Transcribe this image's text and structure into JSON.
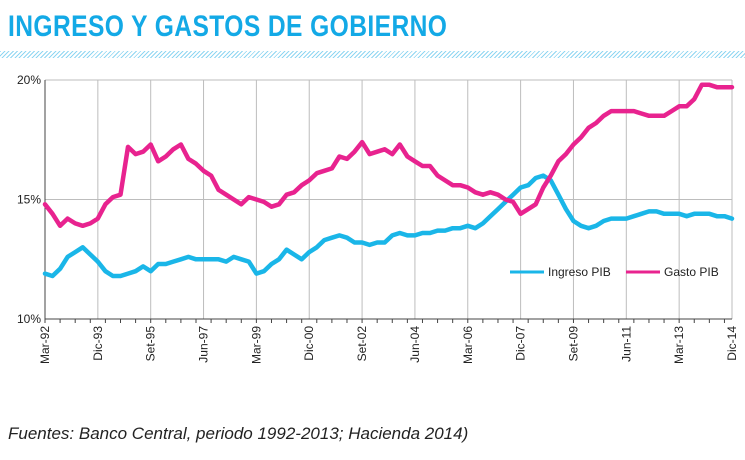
{
  "header": {
    "title": "INGRESO Y GASTOS DE GOBIERNO"
  },
  "footer": {
    "source": "Fuentes: Banco Central, periodo 1992-2013; Hacienda 2014)"
  },
  "colors": {
    "ingreso": "#1ab6e8",
    "gasto": "#e8238f",
    "title": "#13a9e6",
    "grid": "#bdbdbd"
  },
  "chart_data": {
    "type": "line",
    "title": "INGRESO Y GASTOS DE GOBIERNO",
    "xlabel": "",
    "ylabel": "",
    "ylim": [
      10,
      20
    ],
    "yticks": [
      10,
      15,
      20
    ],
    "ytick_labels": [
      "10%",
      "15%",
      "20%"
    ],
    "grid": true,
    "legend_position": "center-right",
    "x_start": "1992-03",
    "x_end": "2014-12",
    "xticks": [
      {
        "date": "1992-03",
        "label": "Mar-92"
      },
      {
        "date": "1993-12",
        "label": "Dic-93"
      },
      {
        "date": "1995-09",
        "label": "Set-95"
      },
      {
        "date": "1997-06",
        "label": "Jun-97"
      },
      {
        "date": "1999-03",
        "label": "Mar-99"
      },
      {
        "date": "2000-12",
        "label": "Dic-00"
      },
      {
        "date": "2002-09",
        "label": "Set-02"
      },
      {
        "date": "2004-06",
        "label": "Jun-04"
      },
      {
        "date": "2006-03",
        "label": "Mar-06"
      },
      {
        "date": "2007-12",
        "label": "Dic-07"
      },
      {
        "date": "2009-09",
        "label": "Set-09"
      },
      {
        "date": "2011-06",
        "label": "Jun-11"
      },
      {
        "date": "2013-03",
        "label": "Mar-13"
      },
      {
        "date": "2014-12",
        "label": "Dic-14"
      }
    ],
    "series": [
      {
        "name": "Ingreso PIB",
        "color": "#1ab6e8",
        "points": [
          [
            "1992-03",
            11.9
          ],
          [
            "1992-06",
            11.8
          ],
          [
            "1992-09",
            12.1
          ],
          [
            "1992-12",
            12.6
          ],
          [
            "1993-03",
            12.8
          ],
          [
            "1993-06",
            13.0
          ],
          [
            "1993-09",
            12.7
          ],
          [
            "1993-12",
            12.4
          ],
          [
            "1994-03",
            12.0
          ],
          [
            "1994-06",
            11.8
          ],
          [
            "1994-09",
            11.8
          ],
          [
            "1994-12",
            11.9
          ],
          [
            "1995-03",
            12.0
          ],
          [
            "1995-06",
            12.2
          ],
          [
            "1995-09",
            12.0
          ],
          [
            "1995-12",
            12.3
          ],
          [
            "1996-03",
            12.3
          ],
          [
            "1996-06",
            12.4
          ],
          [
            "1996-09",
            12.5
          ],
          [
            "1996-12",
            12.6
          ],
          [
            "1997-03",
            12.5
          ],
          [
            "1997-06",
            12.5
          ],
          [
            "1997-09",
            12.5
          ],
          [
            "1997-12",
            12.5
          ],
          [
            "1998-03",
            12.4
          ],
          [
            "1998-06",
            12.6
          ],
          [
            "1998-09",
            12.5
          ],
          [
            "1998-12",
            12.4
          ],
          [
            "1999-03",
            11.9
          ],
          [
            "1999-06",
            12.0
          ],
          [
            "1999-09",
            12.3
          ],
          [
            "1999-12",
            12.5
          ],
          [
            "2000-03",
            12.9
          ],
          [
            "2000-06",
            12.7
          ],
          [
            "2000-09",
            12.5
          ],
          [
            "2000-12",
            12.8
          ],
          [
            "2001-03",
            13.0
          ],
          [
            "2001-06",
            13.3
          ],
          [
            "2001-09",
            13.4
          ],
          [
            "2001-12",
            13.5
          ],
          [
            "2002-03",
            13.4
          ],
          [
            "2002-06",
            13.2
          ],
          [
            "2002-09",
            13.2
          ],
          [
            "2002-12",
            13.1
          ],
          [
            "2003-03",
            13.2
          ],
          [
            "2003-06",
            13.2
          ],
          [
            "2003-09",
            13.5
          ],
          [
            "2003-12",
            13.6
          ],
          [
            "2004-03",
            13.5
          ],
          [
            "2004-06",
            13.5
          ],
          [
            "2004-09",
            13.6
          ],
          [
            "2004-12",
            13.6
          ],
          [
            "2005-03",
            13.7
          ],
          [
            "2005-06",
            13.7
          ],
          [
            "2005-09",
            13.8
          ],
          [
            "2005-12",
            13.8
          ],
          [
            "2006-03",
            13.9
          ],
          [
            "2006-06",
            13.8
          ],
          [
            "2006-09",
            14.0
          ],
          [
            "2006-12",
            14.3
          ],
          [
            "2007-03",
            14.6
          ],
          [
            "2007-06",
            14.9
          ],
          [
            "2007-09",
            15.2
          ],
          [
            "2007-12",
            15.5
          ],
          [
            "2008-03",
            15.6
          ],
          [
            "2008-06",
            15.9
          ],
          [
            "2008-09",
            16.0
          ],
          [
            "2008-12",
            15.8
          ],
          [
            "2009-03",
            15.2
          ],
          [
            "2009-06",
            14.6
          ],
          [
            "2009-09",
            14.1
          ],
          [
            "2009-12",
            13.9
          ],
          [
            "2010-03",
            13.8
          ],
          [
            "2010-06",
            13.9
          ],
          [
            "2010-09",
            14.1
          ],
          [
            "2010-12",
            14.2
          ],
          [
            "2011-03",
            14.2
          ],
          [
            "2011-06",
            14.2
          ],
          [
            "2011-09",
            14.3
          ],
          [
            "2011-12",
            14.4
          ],
          [
            "2012-03",
            14.5
          ],
          [
            "2012-06",
            14.5
          ],
          [
            "2012-09",
            14.4
          ],
          [
            "2012-12",
            14.4
          ],
          [
            "2013-03",
            14.4
          ],
          [
            "2013-06",
            14.3
          ],
          [
            "2013-09",
            14.4
          ],
          [
            "2013-12",
            14.4
          ],
          [
            "2014-03",
            14.4
          ],
          [
            "2014-06",
            14.3
          ],
          [
            "2014-09",
            14.3
          ],
          [
            "2014-12",
            14.2
          ]
        ]
      },
      {
        "name": "Gasto PIB",
        "color": "#e8238f",
        "points": [
          [
            "1992-03",
            14.8
          ],
          [
            "1992-06",
            14.4
          ],
          [
            "1992-09",
            13.9
          ],
          [
            "1992-12",
            14.2
          ],
          [
            "1993-03",
            14.0
          ],
          [
            "1993-06",
            13.9
          ],
          [
            "1993-09",
            14.0
          ],
          [
            "1993-12",
            14.2
          ],
          [
            "1994-03",
            14.8
          ],
          [
            "1994-06",
            15.1
          ],
          [
            "1994-09",
            15.2
          ],
          [
            "1994-12",
            17.2
          ],
          [
            "1995-03",
            16.9
          ],
          [
            "1995-06",
            17.0
          ],
          [
            "1995-09",
            17.3
          ],
          [
            "1995-12",
            16.6
          ],
          [
            "1996-03",
            16.8
          ],
          [
            "1996-06",
            17.1
          ],
          [
            "1996-09",
            17.3
          ],
          [
            "1996-12",
            16.7
          ],
          [
            "1997-03",
            16.5
          ],
          [
            "1997-06",
            16.2
          ],
          [
            "1997-09",
            16.0
          ],
          [
            "1997-12",
            15.4
          ],
          [
            "1998-03",
            15.2
          ],
          [
            "1998-06",
            15.0
          ],
          [
            "1998-09",
            14.8
          ],
          [
            "1998-12",
            15.1
          ],
          [
            "1999-03",
            15.0
          ],
          [
            "1999-06",
            14.9
          ],
          [
            "1999-09",
            14.7
          ],
          [
            "1999-12",
            14.8
          ],
          [
            "2000-03",
            15.2
          ],
          [
            "2000-06",
            15.3
          ],
          [
            "2000-09",
            15.6
          ],
          [
            "2000-12",
            15.8
          ],
          [
            "2001-03",
            16.1
          ],
          [
            "2001-06",
            16.2
          ],
          [
            "2001-09",
            16.3
          ],
          [
            "2001-12",
            16.8
          ],
          [
            "2002-03",
            16.7
          ],
          [
            "2002-06",
            17.0
          ],
          [
            "2002-09",
            17.4
          ],
          [
            "2002-12",
            16.9
          ],
          [
            "2003-03",
            17.0
          ],
          [
            "2003-06",
            17.1
          ],
          [
            "2003-09",
            16.9
          ],
          [
            "2003-12",
            17.3
          ],
          [
            "2004-03",
            16.8
          ],
          [
            "2004-06",
            16.6
          ],
          [
            "2004-09",
            16.4
          ],
          [
            "2004-12",
            16.4
          ],
          [
            "2005-03",
            16.0
          ],
          [
            "2005-06",
            15.8
          ],
          [
            "2005-09",
            15.6
          ],
          [
            "2005-12",
            15.6
          ],
          [
            "2006-03",
            15.5
          ],
          [
            "2006-06",
            15.3
          ],
          [
            "2006-09",
            15.2
          ],
          [
            "2006-12",
            15.3
          ],
          [
            "2007-03",
            15.2
          ],
          [
            "2007-06",
            15.0
          ],
          [
            "2007-09",
            14.9
          ],
          [
            "2007-12",
            14.4
          ],
          [
            "2008-03",
            14.6
          ],
          [
            "2008-06",
            14.8
          ],
          [
            "2008-09",
            15.5
          ],
          [
            "2008-12",
            16.0
          ],
          [
            "2009-03",
            16.6
          ],
          [
            "2009-06",
            16.9
          ],
          [
            "2009-09",
            17.3
          ],
          [
            "2009-12",
            17.6
          ],
          [
            "2010-03",
            18.0
          ],
          [
            "2010-06",
            18.2
          ],
          [
            "2010-09",
            18.5
          ],
          [
            "2010-12",
            18.7
          ],
          [
            "2011-03",
            18.7
          ],
          [
            "2011-06",
            18.7
          ],
          [
            "2011-09",
            18.7
          ],
          [
            "2011-12",
            18.6
          ],
          [
            "2012-03",
            18.5
          ],
          [
            "2012-06",
            18.5
          ],
          [
            "2012-09",
            18.5
          ],
          [
            "2012-12",
            18.7
          ],
          [
            "2013-03",
            18.9
          ],
          [
            "2013-06",
            18.9
          ],
          [
            "2013-09",
            19.2
          ],
          [
            "2013-12",
            19.8
          ],
          [
            "2014-03",
            19.8
          ],
          [
            "2014-06",
            19.7
          ],
          [
            "2014-09",
            19.7
          ],
          [
            "2014-12",
            19.7
          ]
        ]
      }
    ]
  }
}
